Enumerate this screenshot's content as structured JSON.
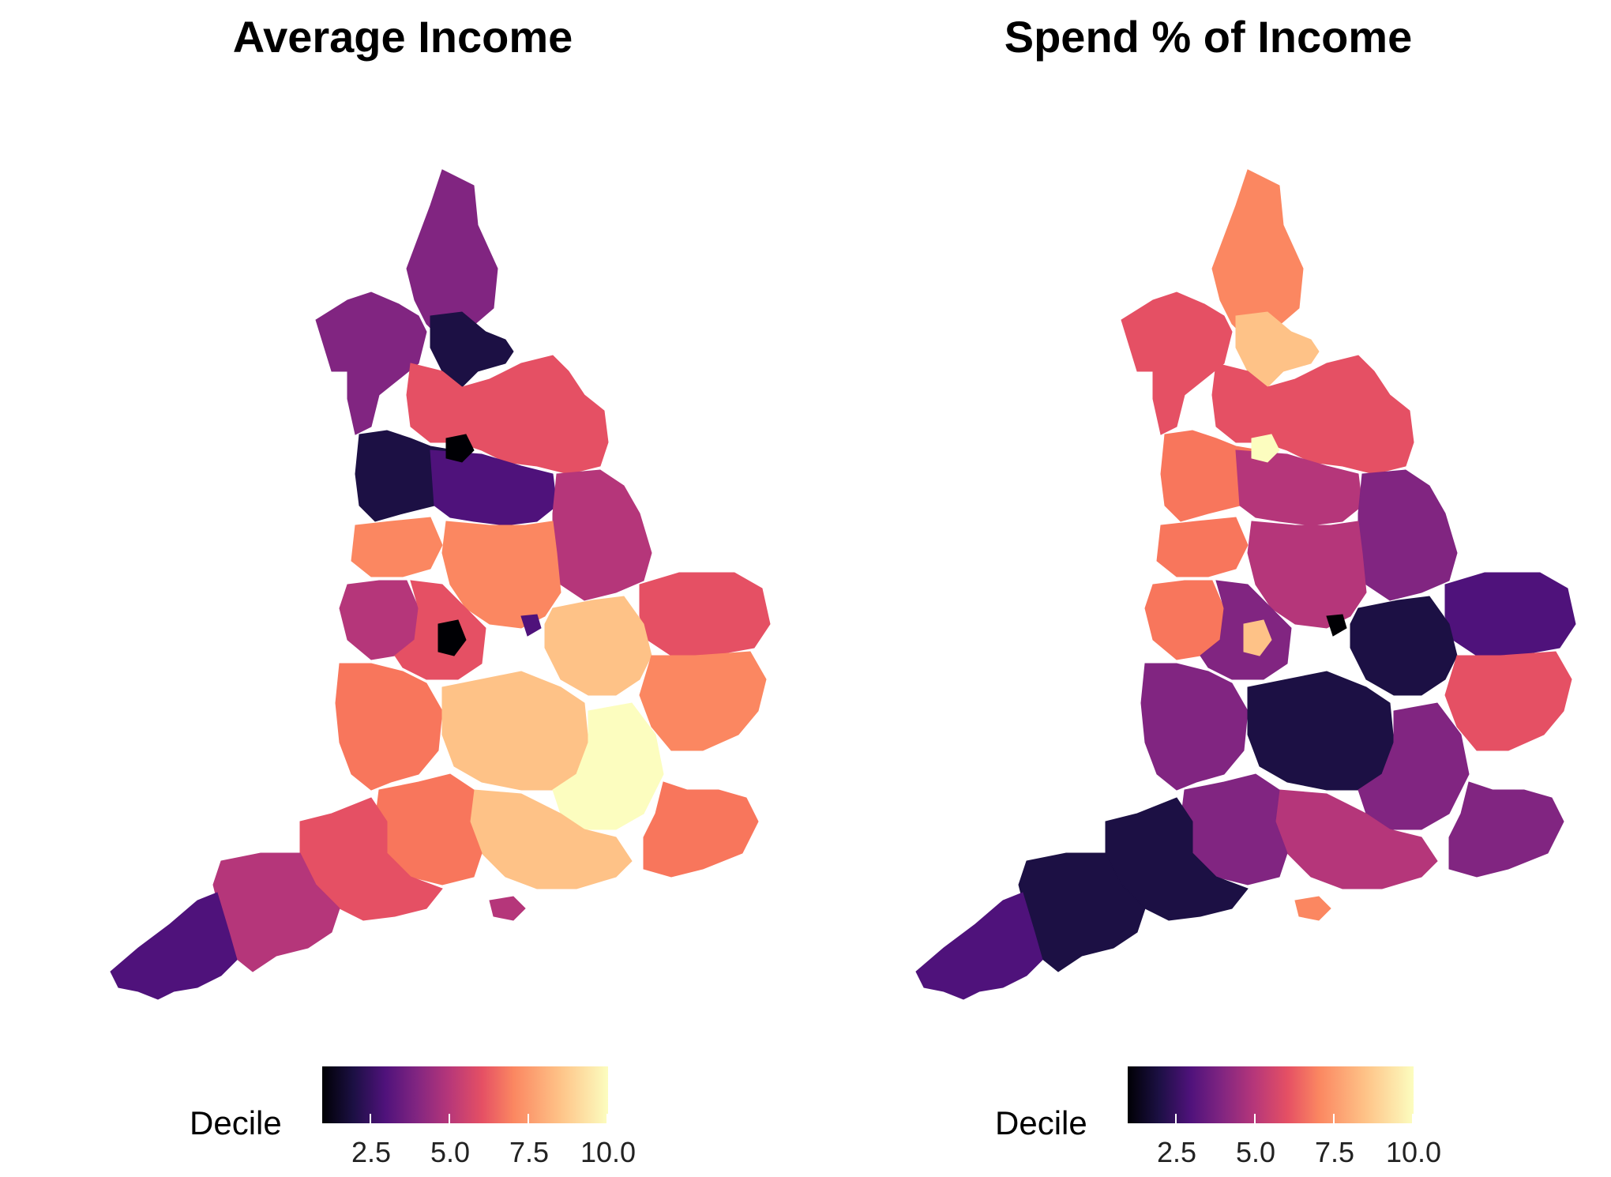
{
  "panels": [
    {
      "title": "Average Income",
      "legend": {
        "label": "Decile",
        "ticks": [
          "2.5",
          "5.0",
          "7.5",
          "10.0"
        ]
      }
    },
    {
      "title": "Spend % of Income",
      "legend": {
        "label": "Decile",
        "ticks": [
          "2.5",
          "5.0",
          "7.5",
          "10.0"
        ]
      }
    }
  ],
  "colors": {
    "d1": "#000004",
    "d2": "#1c1044",
    "d3": "#4f127b",
    "d4": "#812581",
    "d5": "#b5367a",
    "d6": "#e55064",
    "d7": "#f8765c",
    "d8": "#fb8761",
    "d9": "#fec287",
    "d10": "#fcfdbf",
    "na": "#808080"
  },
  "regions": [
    {
      "id": "northumberland",
      "income": 4,
      "spend": 8
    },
    {
      "id": "cumbria",
      "income": 4,
      "spend": 6
    },
    {
      "id": "tyne-wear",
      "income": 2,
      "spend": 9
    },
    {
      "id": "north-yorkshire",
      "income": 6,
      "spend": 6
    },
    {
      "id": "lancashire",
      "income": 2,
      "spend": 7
    },
    {
      "id": "west-yorkshire",
      "income": 3,
      "spend": 5
    },
    {
      "id": "lincolnshire",
      "income": 5,
      "spend": 4
    },
    {
      "id": "cheshire",
      "income": 8,
      "spend": 7
    },
    {
      "id": "east-midlands",
      "income": 8,
      "spend": 5
    },
    {
      "id": "shropshire",
      "income": 5,
      "spend": 7
    },
    {
      "id": "west-midlands",
      "income": 6,
      "spend": 4
    },
    {
      "id": "norfolk",
      "income": 6,
      "spend": 3
    },
    {
      "id": "cambridgeshire",
      "income": 9,
      "spend": 2
    },
    {
      "id": "suffolk",
      "income": 8,
      "spend": 6
    },
    {
      "id": "gloucestershire",
      "income": 7,
      "spend": 4
    },
    {
      "id": "oxford-bucks",
      "income": 9,
      "spend": 2
    },
    {
      "id": "london-south",
      "income": 10,
      "spend": 4
    },
    {
      "id": "kent",
      "income": 7,
      "spend": 4
    },
    {
      "id": "hampshire",
      "income": 9,
      "spend": 5
    },
    {
      "id": "wiltshire",
      "income": 7,
      "spend": 4
    },
    {
      "id": "somerset-dorset",
      "income": 6,
      "spend": 2
    },
    {
      "id": "devon",
      "income": 5,
      "spend": 2
    },
    {
      "id": "cornwall",
      "income": 3,
      "spend": 3
    },
    {
      "id": "isle-of-wight",
      "income": 5,
      "spend": 8
    },
    {
      "id": "cities-north",
      "income": 1,
      "spend": 10
    },
    {
      "id": "cities-midlands",
      "income": 1,
      "spend": 9
    },
    {
      "id": "cities-south",
      "income": 3,
      "spend": 1
    }
  ]
}
